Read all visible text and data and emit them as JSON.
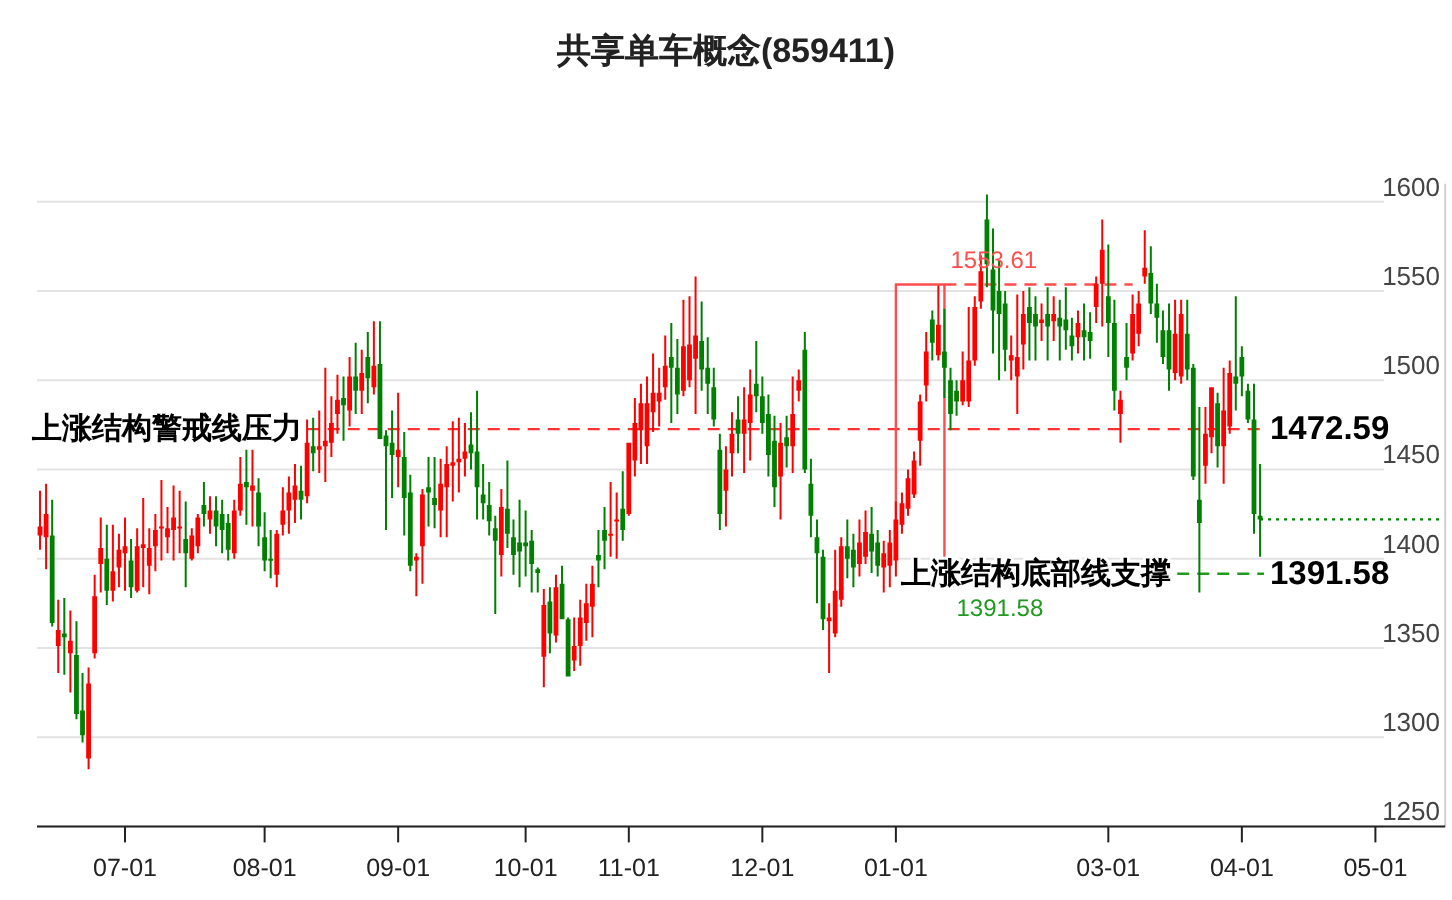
{
  "chart_data": {
    "type": "candlestick",
    "title": "共享单车概念(859411)",
    "categories": [
      null,
      null,
      null,
      null,
      null,
      null,
      null,
      null,
      null,
      null,
      null,
      null,
      null,
      null,
      "07-01",
      null,
      null,
      null,
      null,
      null,
      null,
      null,
      null,
      null,
      null,
      null,
      null,
      null,
      null,
      null,
      null,
      null,
      null,
      null,
      null,
      null,
      null,
      "08-01",
      null,
      null,
      null,
      null,
      null,
      null,
      null,
      null,
      null,
      null,
      null,
      null,
      null,
      null,
      null,
      null,
      null,
      null,
      null,
      null,
      null,
      "09-01",
      null,
      null,
      null,
      null,
      null,
      null,
      null,
      null,
      null,
      null,
      null,
      null,
      null,
      null,
      null,
      null,
      null,
      null,
      null,
      null,
      "10-01",
      null,
      null,
      null,
      null,
      null,
      null,
      null,
      null,
      null,
      null,
      null,
      null,
      null,
      null,
      null,
      null,
      "11-01",
      null,
      null,
      null,
      null,
      null,
      null,
      null,
      null,
      null,
      null,
      null,
      null,
      null,
      null,
      null,
      null,
      null,
      null,
      null,
      null,
      null,
      "12-01",
      null,
      null,
      null,
      null,
      null,
      null,
      null,
      null,
      null,
      null,
      null,
      null,
      null,
      null,
      null,
      null,
      null,
      null,
      null,
      null,
      null,
      "01-01",
      null,
      null,
      null,
      null,
      null,
      null,
      null,
      null,
      null,
      null,
      null,
      null,
      null,
      null,
      null,
      null,
      null,
      null,
      null,
      null,
      null,
      null,
      null,
      null,
      null,
      null,
      null,
      null,
      null,
      null,
      null,
      null,
      null,
      null,
      "03-01",
      null,
      null,
      null,
      null,
      null,
      null,
      null,
      null,
      null,
      null,
      null,
      null,
      null,
      null,
      null,
      null,
      null,
      null,
      null,
      null,
      null,
      "04-01",
      null,
      null,
      null,
      null,
      null,
      null,
      null,
      null,
      null,
      null,
      null,
      null,
      null,
      null,
      null,
      null,
      null,
      null,
      null,
      null,
      null,
      "05-01",
      null,
      null,
      null,
      null,
      null,
      null,
      null,
      null,
      null,
      null,
      null
    ],
    "ohlc": [
      [
        1413,
        1438,
        1405,
        1418
      ],
      [
        1412,
        1442,
        1394,
        1425
      ],
      [
        1413,
        1433,
        1362,
        1364
      ],
      [
        1351,
        1377,
        1336,
        1360
      ],
      [
        1358,
        1378,
        1335,
        1356
      ],
      [
        1347,
        1371,
        1325,
        1354
      ],
      [
        1346,
        1365,
        1310,
        1313
      ],
      [
        1315,
        1336,
        1297,
        1301
      ],
      [
        1288,
        1339,
        1282,
        1330
      ],
      [
        1347,
        1391,
        1344,
        1379
      ],
      [
        1397,
        1423,
        1381,
        1406
      ],
      [
        1400,
        1419,
        1374,
        1382
      ],
      [
        1382,
        1419,
        1376,
        1393
      ],
      [
        1395,
        1414,
        1384,
        1405
      ],
      [
        1403,
        1423,
        1382,
        1407
      ],
      [
        1399,
        1411,
        1378,
        1384
      ],
      [
        1382,
        1417,
        1381,
        1407
      ],
      [
        1406,
        1434,
        1384,
        1408
      ],
      [
        1396,
        1417,
        1380,
        1406
      ],
      [
        1407,
        1425,
        1393,
        1416
      ],
      [
        1417,
        1444,
        1399,
        1418
      ],
      [
        1412,
        1429,
        1403,
        1417
      ],
      [
        1416,
        1441,
        1399,
        1423
      ],
      [
        1417,
        1438,
        1403,
        1418
      ],
      [
        1411,
        1432,
        1384,
        1403
      ],
      [
        1400,
        1417,
        1399,
        1413
      ],
      [
        1407,
        1425,
        1403,
        1423
      ],
      [
        1430,
        1443,
        1418,
        1425
      ],
      [
        1422,
        1435,
        1414,
        1427
      ],
      [
        1427,
        1435,
        1407,
        1418
      ],
      [
        1425,
        1433,
        1403,
        1416
      ],
      [
        1420,
        1425,
        1399,
        1405
      ],
      [
        1403,
        1433,
        1400,
        1427
      ],
      [
        1427,
        1457,
        1424,
        1442
      ],
      [
        1443,
        1461,
        1419,
        1440
      ],
      [
        1438,
        1461,
        1418,
        1441
      ],
      [
        1437,
        1445,
        1407,
        1418
      ],
      [
        1412,
        1426,
        1393,
        1399
      ],
      [
        1400,
        1416,
        1389,
        1399
      ],
      [
        1391,
        1416,
        1384,
        1414
      ],
      [
        1419,
        1440,
        1413,
        1427
      ],
      [
        1427,
        1446,
        1414,
        1437
      ],
      [
        1433,
        1453,
        1420,
        1441
      ],
      [
        1438,
        1452,
        1422,
        1433
      ],
      [
        1435,
        1478,
        1431,
        1465
      ],
      [
        1463,
        1479,
        1449,
        1459
      ],
      [
        1461,
        1483,
        1448,
        1463
      ],
      [
        1463,
        1507,
        1443,
        1466
      ],
      [
        1465,
        1491,
        1457,
        1476
      ],
      [
        1481,
        1503,
        1470,
        1489
      ],
      [
        1490,
        1502,
        1466,
        1486
      ],
      [
        1483,
        1513,
        1474,
        1502
      ],
      [
        1502,
        1521,
        1481,
        1494
      ],
      [
        1494,
        1517,
        1481,
        1504
      ],
      [
        1513,
        1527,
        1487,
        1501
      ],
      [
        1496,
        1533,
        1492,
        1508
      ],
      [
        1509,
        1533,
        1467,
        1467
      ],
      [
        1469,
        1472,
        1416,
        1463
      ],
      [
        1465,
        1483,
        1434,
        1458
      ],
      [
        1457,
        1493,
        1440,
        1461
      ],
      [
        1457,
        1471,
        1413,
        1434
      ],
      [
        1437,
        1447,
        1393,
        1396
      ],
      [
        1399,
        1403,
        1379,
        1401
      ],
      [
        1407,
        1439,
        1386,
        1436
      ],
      [
        1440,
        1457,
        1418,
        1437
      ],
      [
        1434,
        1457,
        1417,
        1430
      ],
      [
        1427,
        1456,
        1412,
        1442
      ],
      [
        1440,
        1463,
        1412,
        1453
      ],
      [
        1452,
        1477,
        1432,
        1454
      ],
      [
        1454,
        1479,
        1437,
        1456
      ],
      [
        1456,
        1476,
        1446,
        1460
      ],
      [
        1464,
        1482,
        1450,
        1459
      ],
      [
        1460,
        1494,
        1422,
        1440
      ],
      [
        1436,
        1453,
        1422,
        1431
      ],
      [
        1430,
        1443,
        1413,
        1421
      ],
      [
        1417,
        1424,
        1369,
        1410
      ],
      [
        1402,
        1439,
        1390,
        1429
      ],
      [
        1428,
        1455,
        1406,
        1414
      ],
      [
        1412,
        1422,
        1391,
        1402
      ],
      [
        1409,
        1433,
        1384,
        1404
      ],
      [
        1409,
        1427,
        1390,
        1407
      ],
      [
        1410,
        1416,
        1381,
        1397
      ],
      [
        1394,
        1395,
        1381,
        1392
      ],
      [
        1345,
        1383,
        1328,
        1374
      ],
      [
        1376,
        1384,
        1347,
        1358
      ],
      [
        1357,
        1391,
        1353,
        1384
      ],
      [
        1386,
        1396,
        1366,
        1366
      ],
      [
        1366,
        1367,
        1334,
        1334
      ],
      [
        1343,
        1367,
        1337,
        1351
      ],
      [
        1351,
        1377,
        1340,
        1367
      ],
      [
        1364,
        1386,
        1354,
        1375
      ],
      [
        1373,
        1396,
        1356,
        1386
      ],
      [
        1402,
        1416,
        1384,
        1399
      ],
      [
        1416,
        1429,
        1394,
        1410
      ],
      [
        1413,
        1443,
        1401,
        1414
      ],
      [
        1421,
        1437,
        1400,
        1422
      ],
      [
        1428,
        1449,
        1410,
        1416
      ],
      [
        1425,
        1465,
        1424,
        1465
      ],
      [
        1455,
        1490,
        1446,
        1476
      ],
      [
        1472,
        1498,
        1453,
        1487
      ],
      [
        1463,
        1502,
        1453,
        1487
      ],
      [
        1482,
        1515,
        1471,
        1493
      ],
      [
        1488,
        1507,
        1474,
        1493
      ],
      [
        1496,
        1525,
        1489,
        1508
      ],
      [
        1513,
        1532,
        1476,
        1507
      ],
      [
        1507,
        1523,
        1481,
        1492
      ],
      [
        1494,
        1545,
        1491,
        1519
      ],
      [
        1500,
        1547,
        1496,
        1520
      ],
      [
        1512,
        1558,
        1481,
        1525
      ],
      [
        1522,
        1544,
        1494,
        1506
      ],
      [
        1507,
        1524,
        1481,
        1498
      ],
      [
        1496,
        1507,
        1474,
        1478
      ],
      [
        1461,
        1470,
        1416,
        1425
      ],
      [
        1438,
        1463,
        1418,
        1450
      ],
      [
        1459,
        1482,
        1446,
        1470
      ],
      [
        1478,
        1491,
        1459,
        1470
      ],
      [
        1470,
        1496,
        1448,
        1478
      ],
      [
        1476,
        1506,
        1455,
        1492
      ],
      [
        1498,
        1522,
        1482,
        1491
      ],
      [
        1491,
        1502,
        1470,
        1476
      ],
      [
        1481,
        1492,
        1446,
        1458
      ],
      [
        1466,
        1480,
        1429,
        1440
      ],
      [
        1446,
        1476,
        1422,
        1465
      ],
      [
        1468,
        1480,
        1451,
        1463
      ],
      [
        1463,
        1502,
        1448,
        1481
      ],
      [
        1494,
        1506,
        1488,
        1500
      ],
      [
        1517,
        1527,
        1448,
        1450
      ],
      [
        1442,
        1456,
        1412,
        1424
      ],
      [
        1412,
        1422,
        1375,
        1403
      ],
      [
        1401,
        1405,
        1360,
        1366
      ],
      [
        1365,
        1375,
        1336,
        1367
      ],
      [
        1358,
        1405,
        1356,
        1382
      ],
      [
        1377,
        1412,
        1373,
        1407
      ],
      [
        1407,
        1422,
        1389,
        1400
      ],
      [
        1405,
        1414,
        1384,
        1395
      ],
      [
        1397,
        1422,
        1390,
        1409
      ],
      [
        1401,
        1427,
        1397,
        1415
      ],
      [
        1414,
        1429,
        1392,
        1404
      ],
      [
        1409,
        1416,
        1390,
        1396
      ],
      [
        1395,
        1410,
        1381,
        1403
      ],
      [
        1396,
        1416,
        1384,
        1409
      ],
      [
        1399,
        1432,
        1390,
        1422
      ],
      [
        1419,
        1437,
        1414,
        1431
      ],
      [
        1428,
        1450,
        1424,
        1445
      ],
      [
        1436,
        1460,
        1434,
        1455
      ],
      [
        1466,
        1492,
        1452,
        1488
      ],
      [
        1497,
        1527,
        1488,
        1516
      ],
      [
        1534,
        1539,
        1511,
        1521
      ],
      [
        1514,
        1553,
        1511,
        1531
      ],
      [
        1516,
        1540,
        1490,
        1507
      ],
      [
        1500,
        1507,
        1472,
        1481
      ],
      [
        1494,
        1500,
        1480,
        1488
      ],
      [
        1488,
        1516,
        1486,
        1500
      ],
      [
        1488,
        1541,
        1485,
        1511
      ],
      [
        1511,
        1547,
        1508,
        1541
      ],
      [
        1544,
        1570,
        1540,
        1561
      ],
      [
        1590,
        1604,
        1552,
        1565
      ],
      [
        1562,
        1585,
        1515,
        1539
      ],
      [
        1550,
        1567,
        1500,
        1537
      ],
      [
        1543,
        1550,
        1505,
        1517
      ],
      [
        1511,
        1525,
        1500,
        1514
      ],
      [
        1502,
        1548,
        1481,
        1513
      ],
      [
        1520,
        1550,
        1506,
        1537
      ],
      [
        1541,
        1552,
        1511,
        1532
      ],
      [
        1537,
        1547,
        1511,
        1530
      ],
      [
        1532,
        1543,
        1522,
        1534
      ],
      [
        1537,
        1552,
        1511,
        1530
      ],
      [
        1533,
        1547,
        1522,
        1537
      ],
      [
        1535,
        1545,
        1511,
        1530
      ],
      [
        1534,
        1552,
        1517,
        1528
      ],
      [
        1525,
        1535,
        1511,
        1519
      ],
      [
        1524,
        1539,
        1515,
        1532
      ],
      [
        1528,
        1543,
        1511,
        1524
      ],
      [
        1527,
        1538,
        1512,
        1522
      ],
      [
        1541,
        1558,
        1532,
        1554
      ],
      [
        1554,
        1590,
        1530,
        1573
      ],
      [
        1547,
        1576,
        1513,
        1532
      ],
      [
        1532,
        1545,
        1483,
        1494
      ],
      [
        1481,
        1494,
        1465,
        1489
      ],
      [
        1513,
        1532,
        1500,
        1507
      ],
      [
        1515,
        1548,
        1511,
        1537
      ],
      [
        1526,
        1550,
        1519,
        1543
      ],
      [
        1558,
        1584,
        1554,
        1563
      ],
      [
        1560,
        1575,
        1537,
        1543
      ],
      [
        1543,
        1554,
        1521,
        1535
      ],
      [
        1528,
        1539,
        1509,
        1513
      ],
      [
        1528,
        1543,
        1494,
        1506
      ],
      [
        1504,
        1545,
        1500,
        1526
      ],
      [
        1502,
        1545,
        1498,
        1537
      ],
      [
        1526,
        1545,
        1500,
        1506
      ],
      [
        1507,
        1509,
        1444,
        1446
      ],
      [
        1433,
        1485,
        1381,
        1420
      ],
      [
        1452,
        1485,
        1442,
        1470
      ],
      [
        1468,
        1496,
        1459,
        1496
      ],
      [
        1487,
        1493,
        1451,
        1463
      ],
      [
        1463,
        1507,
        1442,
        1483
      ],
      [
        1474,
        1511,
        1470,
        1504
      ],
      [
        1502,
        1547,
        1483,
        1498
      ],
      [
        1513,
        1519,
        1491,
        1502
      ],
      [
        1494,
        1498,
        1476,
        1478
      ],
      [
        1478,
        1498,
        1414,
        1425
      ],
      [
        1424,
        1453,
        1401,
        1422
      ],
      null,
      null,
      null,
      null,
      null,
      null,
      null,
      null,
      null,
      null,
      null,
      null,
      null,
      null,
      null,
      null,
      null,
      null,
      null,
      null,
      null,
      null,
      null,
      null,
      null,
      null,
      null,
      null,
      null,
      null
    ],
    "colors": [
      "#ff0000",
      "#ff0000",
      "#008000",
      "#ff0000",
      "#008000",
      "#ff0000",
      "#008000",
      "#008000",
      "#ff0000",
      "#ff0000",
      "#ff0000",
      "#008000",
      "#ff0000",
      "#ff0000",
      "#ff0000",
      "#008000",
      "#ff0000",
      "#ff0000",
      "#ff0000",
      "#ff0000",
      "#ff0000",
      "#ff0000",
      "#ff0000",
      "#ff0000",
      "#008000",
      "#ff0000",
      "#ff0000",
      "#008000",
      "#ff0000",
      "#008000",
      "#008000",
      "#008000",
      "#ff0000",
      "#ff0000",
      "#008000",
      "#ff0000",
      "#008000",
      "#008000",
      "#008000",
      "#ff0000",
      "#ff0000",
      "#ff0000",
      "#ff0000",
      "#008000",
      "#ff0000",
      "#008000",
      "#ff0000",
      "#ff0000",
      "#ff0000",
      "#ff0000",
      "#008000",
      "#ff0000",
      "#008000",
      "#ff0000",
      "#008000",
      "#ff0000",
      "#008000",
      "#008000",
      "#008000",
      "#ff0000",
      "#008000",
      "#008000",
      "#ff0000",
      "#ff0000",
      "#008000",
      "#008000",
      "#ff0000",
      "#ff0000",
      "#ff0000",
      "#ff0000",
      "#ff0000",
      "#008000",
      "#008000",
      "#008000",
      "#008000",
      "#008000",
      "#ff0000",
      "#008000",
      "#008000",
      "#008000",
      "#008000",
      "#008000",
      "#008000",
      "#ff0000",
      "#008000",
      "#ff0000",
      "#008000",
      "#008000",
      "#ff0000",
      "#ff0000",
      "#ff0000",
      "#ff0000",
      "#008000",
      "#008000",
      "#ff0000",
      "#ff0000",
      "#008000",
      "#ff0000",
      "#ff0000",
      "#ff0000",
      "#ff0000",
      "#ff0000",
      "#ff0000",
      "#ff0000",
      "#008000",
      "#008000",
      "#ff0000",
      "#ff0000",
      "#ff0000",
      "#008000",
      "#008000",
      "#008000",
      "#008000",
      "#ff0000",
      "#ff0000",
      "#008000",
      "#ff0000",
      "#ff0000",
      "#008000",
      "#008000",
      "#008000",
      "#008000",
      "#ff0000",
      "#008000",
      "#ff0000",
      "#ff0000",
      "#008000",
      "#008000",
      "#008000",
      "#008000",
      "#ff0000",
      "#ff0000",
      "#ff0000",
      "#008000",
      "#008000",
      "#ff0000",
      "#ff0000",
      "#008000",
      "#008000",
      "#ff0000",
      "#ff0000",
      "#ff0000",
      "#ff0000",
      "#ff0000",
      "#ff0000",
      "#ff0000",
      "#ff0000",
      "#008000",
      "#ff0000",
      "#008000",
      "#008000",
      "#008000",
      "#ff0000",
      "#ff0000",
      "#ff0000",
      "#ff0000",
      "#008000",
      "#008000",
      "#008000",
      "#008000",
      "#ff0000",
      "#ff0000",
      "#ff0000",
      "#008000",
      "#008000",
      "#ff0000",
      "#008000",
      "#ff0000",
      "#008000",
      "#008000",
      "#008000",
      "#ff0000",
      "#008000",
      "#008000",
      "#ff0000",
      "#ff0000",
      "#008000",
      "#008000",
      "#ff0000",
      "#008000",
      "#ff0000",
      "#ff0000",
      "#ff0000",
      "#008000",
      "#008000",
      "#008000",
      "#008000",
      "#ff0000",
      "#ff0000",
      "#008000",
      "#008000",
      "#008000",
      "#ff0000",
      "#ff0000",
      "#008000",
      "#ff0000",
      "#ff0000",
      "#008000",
      "#008000",
      "#008000",
      "#008000",
      "#008000",
      null,
      null,
      null,
      null,
      null,
      null,
      null,
      null,
      null,
      null,
      null,
      null,
      null,
      null,
      null,
      null,
      null,
      null,
      null,
      null,
      null,
      null,
      null,
      null,
      null,
      null,
      null,
      null,
      null,
      null
    ],
    "ylim": [
      1250,
      1610
    ],
    "yticks": [
      1250,
      1300,
      1350,
      1400,
      1450,
      1500,
      1550,
      1600
    ],
    "grid": "y",
    "series": [
      {
        "type": "step",
        "color": "#ff4d4d",
        "values": [
          null,
          null,
          null,
          null,
          null,
          null,
          null,
          null,
          null,
          null,
          null,
          null,
          null,
          null,
          null,
          null,
          null,
          null,
          null,
          null,
          null,
          null,
          null,
          null,
          null,
          null,
          null,
          null,
          null,
          null,
          null,
          null,
          null,
          null,
          null,
          null,
          null,
          null,
          null,
          null,
          null,
          null,
          null,
          null,
          null,
          null,
          null,
          null,
          null,
          null,
          null,
          null,
          null,
          null,
          null,
          null,
          null,
          null,
          null,
          null,
          null,
          null,
          null,
          null,
          null,
          null,
          null,
          null,
          null,
          null,
          null,
          null,
          null,
          null,
          null,
          null,
          null,
          null,
          null,
          null,
          null,
          null,
          null,
          null,
          null,
          null,
          null,
          null,
          null,
          null,
          null,
          null,
          null,
          null,
          null,
          null,
          null,
          null,
          null,
          null,
          null,
          null,
          null,
          null,
          null,
          null,
          null,
          null,
          null,
          null,
          null,
          null,
          null,
          null,
          null,
          null,
          null,
          null,
          null,
          null,
          null,
          null,
          null,
          null,
          null,
          null,
          null,
          null,
          null,
          null,
          null,
          null,
          null,
          null,
          null,
          null,
          null,
          null,
          null,
          null,
          null,
          1420,
          1553.61,
          1553.61,
          1553.61,
          1553.61,
          1553.61,
          1553.61,
          1553.61,
          1553.61,
          1391.58,
          null,
          null,
          null,
          null,
          null,
          null,
          null,
          null,
          null,
          null,
          null,
          null,
          null,
          null,
          null,
          null,
          null,
          null,
          null,
          null,
          null,
          null,
          null,
          null,
          null,
          null,
          null,
          null,
          null,
          null,
          null,
          null,
          null,
          null,
          null,
          null,
          null,
          null,
          null,
          null,
          null,
          null,
          null,
          null,
          null,
          null,
          null,
          null,
          null,
          null,
          null,
          null,
          null,
          null,
          null,
          null,
          null,
          null,
          null,
          null,
          null,
          null,
          null,
          null,
          null,
          null,
          null,
          null,
          null,
          null,
          null,
          null,
          null,
          null,
          null,
          null,
          null,
          null,
          null,
          null,
          null
        ]
      },
      {
        "type": "line",
        "color": "#ff4d4d",
        "line_style": "dashed",
        "values": [
          null,
          null,
          null,
          null,
          null,
          null,
          null,
          null,
          null,
          null,
          null,
          null,
          null,
          null,
          null,
          null,
          null,
          null,
          null,
          null,
          null,
          null,
          null,
          null,
          null,
          null,
          null,
          null,
          null,
          null,
          null,
          null,
          null,
          null,
          null,
          null,
          null,
          null,
          null,
          null,
          null,
          null,
          null,
          null,
          null,
          null,
          null,
          null,
          null,
          null,
          null,
          null,
          null,
          null,
          null,
          null,
          null,
          null,
          null,
          null,
          null,
          null,
          null,
          null,
          null,
          null,
          null,
          null,
          null,
          null,
          null,
          null,
          null,
          null,
          null,
          null,
          null,
          null,
          null,
          null,
          null,
          null,
          null,
          null,
          null,
          null,
          null,
          null,
          null,
          null,
          null,
          null,
          null,
          null,
          null,
          null,
          null,
          null,
          null,
          null,
          null,
          null,
          null,
          null,
          null,
          null,
          null,
          null,
          null,
          null,
          null,
          null,
          null,
          null,
          null,
          null,
          null,
          null,
          null,
          null,
          null,
          null,
          null,
          null,
          null,
          null,
          null,
          null,
          null,
          null,
          null,
          null,
          null,
          null,
          null,
          null,
          null,
          null,
          null,
          null,
          null,
          null,
          null,
          null,
          null,
          null,
          null,
          null,
          null,
          1553.61,
          1553.61,
          1553.61,
          1553.61,
          1553.61,
          1553.61,
          1553.61,
          1553.61,
          1553.61,
          1553.61,
          1553.61,
          1553.61,
          1553.61,
          1553.61,
          1553.61,
          1553.61,
          1553.61,
          1553.61,
          1553.61,
          1553.61,
          1553.61,
          1553.61,
          1553.61,
          1553.61,
          1553.61,
          1553.61,
          1553.61,
          1553.61,
          1553.61,
          1553.61,
          1553.61,
          1553.61,
          null,
          null,
          null,
          null,
          null,
          null,
          null,
          null,
          null,
          null,
          null,
          null,
          null,
          null,
          null,
          null,
          null,
          null,
          null,
          null,
          null,
          null,
          null,
          null,
          null,
          null,
          null,
          null,
          null,
          null,
          null,
          null,
          null,
          null,
          null,
          null,
          null,
          null,
          null,
          null,
          null,
          null,
          null,
          null,
          null,
          null,
          null,
          null,
          null,
          null,
          null
        ]
      },
      {
        "type": "line",
        "color": "#008000",
        "line_style": "dotted",
        "values": [
          null,
          null,
          null,
          null,
          null,
          null,
          null,
          null,
          null,
          null,
          null,
          null,
          null,
          null,
          null,
          null,
          null,
          null,
          null,
          null,
          null,
          null,
          null,
          null,
          null,
          null,
          null,
          null,
          null,
          null,
          null,
          null,
          null,
          null,
          null,
          null,
          null,
          null,
          null,
          null,
          null,
          null,
          null,
          null,
          null,
          null,
          null,
          null,
          null,
          null,
          null,
          null,
          null,
          null,
          null,
          null,
          null,
          null,
          null,
          null,
          null,
          null,
          null,
          null,
          null,
          null,
          null,
          null,
          null,
          null,
          null,
          null,
          null,
          null,
          null,
          null,
          null,
          null,
          null,
          null,
          null,
          null,
          null,
          null,
          null,
          null,
          null,
          null,
          null,
          null,
          null,
          null,
          null,
          null,
          null,
          null,
          null,
          null,
          null,
          null,
          null,
          null,
          null,
          null,
          null,
          null,
          null,
          null,
          null,
          null,
          null,
          null,
          null,
          null,
          null,
          null,
          null,
          null,
          null,
          null,
          null,
          null,
          null,
          null,
          null,
          null,
          null,
          null,
          null,
          null,
          null,
          null,
          null,
          null,
          null,
          null,
          null,
          null,
          null,
          null,
          null,
          null,
          null,
          null,
          null,
          null,
          null,
          null,
          null,
          null,
          null,
          null,
          null,
          null,
          null,
          null,
          null,
          null,
          null,
          null,
          null,
          null,
          null,
          null,
          null,
          null,
          null,
          null,
          null,
          null,
          null,
          null,
          null,
          null,
          null,
          null,
          null,
          null,
          null,
          null,
          null,
          null,
          null,
          null,
          null,
          null,
          null,
          null,
          null,
          null,
          null,
          null,
          null,
          null,
          null,
          null,
          null,
          null,
          null,
          null,
          null,
          1422,
          1422,
          1422,
          1422,
          1422,
          1422,
          1422,
          1422,
          1422,
          1422,
          1422,
          1422,
          1422,
          1422,
          1422,
          1422,
          1422,
          1422,
          1422,
          1422,
          1422,
          1422,
          1422,
          1422,
          1422,
          1422,
          1422,
          1422,
          1422,
          1422,
          1422
        ]
      }
    ],
    "ref_lines": [
      {
        "axis": "y",
        "value": 1472.59,
        "label": "上涨结构警戒线压力",
        "color": "#ff3030",
        "line_style": "dashed"
      },
      {
        "axis": "y",
        "value": 1391.58,
        "label": "上涨结构底部线支撑",
        "color": "#1f9a1f",
        "line_style": "dashed"
      }
    ],
    "annotations": [
      "1553.61",
      "1391.58",
      "1472.59",
      "1391.58"
    ]
  }
}
